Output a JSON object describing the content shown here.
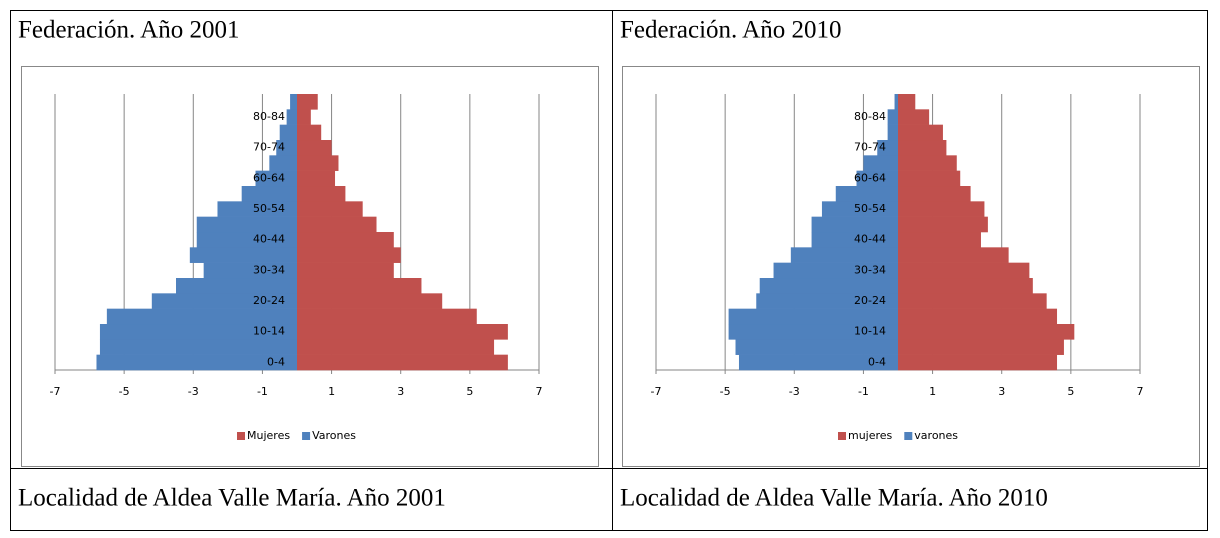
{
  "table": {
    "rows": [
      [
        "Federación. Año 2001",
        "Federación. Año 2010"
      ],
      [
        "Localidad de Aldea Valle María. Año 2001",
        "Localidad de Aldea Valle María. Año 2010"
      ]
    ]
  },
  "chart_data": [
    {
      "type": "pyramid",
      "categories": [
        "0-4",
        null,
        "10-14",
        null,
        "20-24",
        null,
        "30-34",
        null,
        "40-44",
        null,
        "50-54",
        null,
        "60-64",
        null,
        "70-74",
        null,
        "80-84",
        null
      ],
      "series": [
        {
          "name": "Mujeres",
          "color": "#c0504d",
          "values": [
            6.1,
            5.7,
            6.1,
            5.2,
            4.2,
            3.6,
            2.8,
            3.0,
            2.8,
            2.3,
            1.9,
            1.4,
            1.1,
            1.2,
            1.0,
            0.7,
            0.4,
            0.6
          ]
        },
        {
          "name": "Varones",
          "color": "#4f81bd",
          "values": [
            -5.8,
            -5.7,
            -5.7,
            -5.5,
            -4.2,
            -3.5,
            -2.7,
            -3.1,
            -2.9,
            -2.9,
            -2.3,
            -1.6,
            -1.2,
            -0.8,
            -0.6,
            -0.5,
            -0.3,
            -0.2
          ]
        }
      ],
      "xlim": [
        -7,
        7
      ],
      "xticks": [
        -7,
        -5,
        -3,
        -1,
        1,
        3,
        5,
        7
      ],
      "grid": true,
      "legend": "bottom"
    },
    {
      "type": "pyramid",
      "categories": [
        "0-4",
        null,
        "10-14",
        null,
        "20-24",
        null,
        "30-34",
        null,
        "40-44",
        null,
        "50-54",
        null,
        "60-64",
        null,
        "70-74",
        null,
        "80-84",
        null
      ],
      "series": [
        {
          "name": "mujeres",
          "color": "#c0504d",
          "values": [
            4.6,
            4.8,
            5.1,
            4.6,
            4.3,
            3.9,
            3.8,
            3.2,
            2.4,
            2.6,
            2.5,
            2.1,
            1.8,
            1.7,
            1.4,
            1.3,
            0.9,
            0.5
          ]
        },
        {
          "name": "varones",
          "color": "#4f81bd",
          "values": [
            -4.6,
            -4.7,
            -4.9,
            -4.9,
            -4.1,
            -4.0,
            -3.6,
            -3.1,
            -2.5,
            -2.5,
            -2.2,
            -1.8,
            -1.2,
            -1.0,
            -0.6,
            -0.3,
            -0.3,
            -0.1
          ]
        }
      ],
      "xlim": [
        -7,
        7
      ],
      "xticks": [
        -7,
        -5,
        -3,
        -1,
        1,
        3,
        5,
        7
      ],
      "grid": true,
      "legend": "bottom"
    }
  ]
}
